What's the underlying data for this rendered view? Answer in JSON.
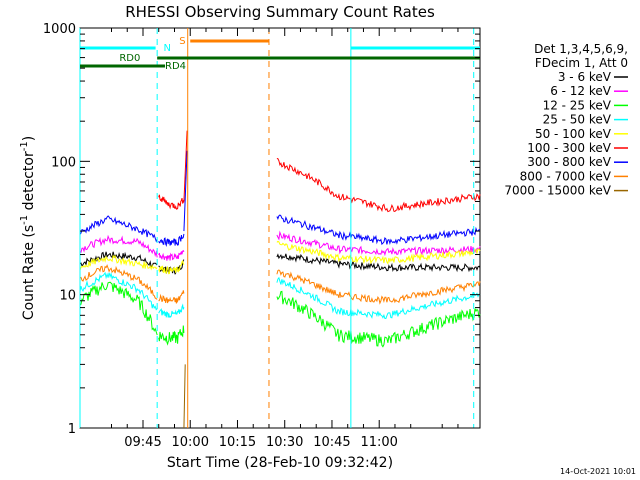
{
  "chart_data": {
    "type": "line",
    "title": "RHESSI Observing Summary Count Rates",
    "xlabel": "Start Time (28-Feb-10 09:32:42)",
    "ylabel": "Count Rate (s⁻¹ detector⁻¹)",
    "ylabel_parts": {
      "main": "Count Rate (s",
      "sup1": "-1",
      "mid": " detector",
      "sup2": "-1",
      "end": ")"
    },
    "yscale": "log",
    "ylim": [
      1,
      1000
    ],
    "xlim_minutes": [
      -35,
      92
    ],
    "x_ticks": [
      {
        "label": "09:45",
        "min": 45
      },
      {
        "label": "10:00",
        "min": 60
      },
      {
        "label": "10:15",
        "min": 75
      },
      {
        "label": "10:30",
        "min": 90
      },
      {
        "label": "10:45",
        "min": 105
      },
      {
        "label": "11:00",
        "min": 120
      }
    ],
    "y_ticks": [
      {
        "label": "1000",
        "value": 1000
      },
      {
        "label": "100",
        "value": 100
      },
      {
        "label": "10",
        "value": 10
      },
      {
        "label": "1",
        "value": 1
      }
    ],
    "legend_header": [
      "Det 1,3,4,5,6,9,",
      "FDecim 1, Att 0"
    ],
    "series": [
      {
        "name": "3 - 6 keV",
        "color": "#000000",
        "pre": [
          17,
          20,
          19,
          16
        ],
        "post": [
          20,
          17,
          16,
          16
        ]
      },
      {
        "name": "6 - 12 keV",
        "color": "#ff00ff",
        "pre": [
          22,
          26,
          25,
          20
        ],
        "post": [
          28,
          22,
          21,
          22
        ]
      },
      {
        "name": "12 - 25 keV",
        "color": "#00ff00",
        "pre": [
          9,
          12,
          9,
          5
        ],
        "post": [
          10,
          5,
          4.5,
          7.5
        ]
      },
      {
        "name": "25 - 50 keV",
        "color": "#00ffff",
        "pre": [
          11,
          14,
          11,
          7.5
        ],
        "post": [
          13,
          7.5,
          7,
          10
        ]
      },
      {
        "name": "50 - 100 keV",
        "color": "#ffff00",
        "pre": [
          16,
          19,
          17,
          16
        ],
        "post": [
          24,
          19,
          18,
          21
        ]
      },
      {
        "name": "100 - 300 keV",
        "color": "#ff0000",
        "pre": [],
        "post": [
          100,
          55,
          44,
          55
        ]
      },
      {
        "name": "300 - 800 keV",
        "color": "#0000ff",
        "pre": [
          29,
          37,
          31,
          26
        ],
        "post": [
          38,
          28,
          25,
          30
        ]
      },
      {
        "name": "800 - 7000 keV",
        "color": "#ff8000",
        "pre": [
          13,
          16,
          13,
          9.5
        ],
        "post": [
          15,
          10,
          9,
          12
        ]
      },
      {
        "name": "7000 - 15000 keV",
        "color": "#996600",
        "pre": [],
        "post": []
      }
    ],
    "flags": [
      {
        "label": "N",
        "color": "#00ffff"
      },
      {
        "label": "S",
        "color": "#ff8000"
      },
      {
        "label": "RD0",
        "color": "#006600"
      },
      {
        "label": "RD4",
        "color": "#006600"
      }
    ]
  },
  "footer": {
    "timestamp": "14-Oct-2021 10:01"
  }
}
